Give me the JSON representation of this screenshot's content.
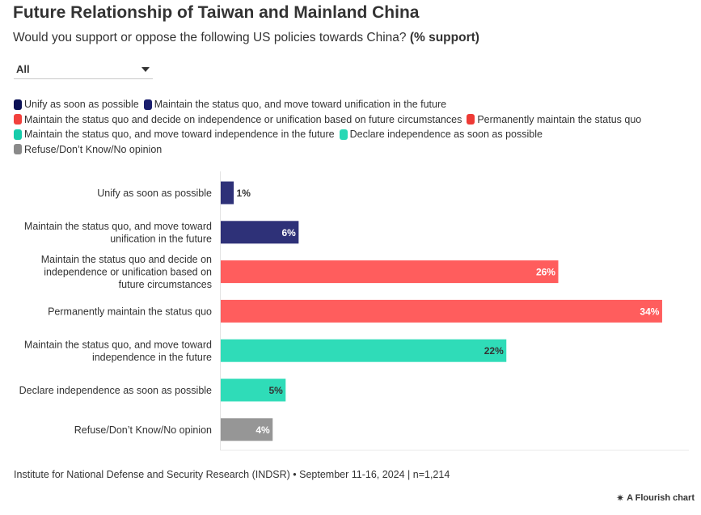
{
  "header": {
    "title": "Future Relationship of Taiwan and Mainland China",
    "subtitle": "Would you support or oppose the following US policies towards China?",
    "subtitle_bold": "(% support)"
  },
  "filter": {
    "selected": "All",
    "icon": "chevron-down-icon"
  },
  "legend": [
    {
      "label": "Unify as soon as possible",
      "color": "#0b1156"
    },
    {
      "label": "Maintain the status quo, and move toward unification in the future",
      "color": "#1b1f6e"
    },
    {
      "label": "Maintain the status quo and decide on independence or unification based on future circumstances",
      "color": "#f2413d"
    },
    {
      "label": "Permanently maintain the status quo",
      "color": "#ee3a35"
    },
    {
      "label": "Maintain the status quo, and move toward independence in the future",
      "color": "#16ccab"
    },
    {
      "label": "Declare independence as soon as possible",
      "color": "#27d8b5"
    },
    {
      "label": "Refuse/Don’t Know/No opinion",
      "color": "#8a8a8a"
    }
  ],
  "chart_data": {
    "type": "bar",
    "orientation": "horizontal",
    "title": "Future Relationship of Taiwan and Mainland China",
    "xlim": [
      0,
      35
    ],
    "grid": false,
    "value_suffix": "%",
    "categories": [
      "Unify as soon as possible",
      "Maintain the status quo, and move toward unification in the future",
      "Maintain the status quo and decide on independence or unification based on future circumstances",
      "Permanently maintain the status quo",
      "Maintain the status quo, and move toward independence in the future",
      "Declare independence as soon as possible",
      "Refuse/Don’t Know/No opinion"
    ],
    "category_lines": [
      [
        "Unify as soon as possible"
      ],
      [
        "Maintain the status quo, and move toward",
        "unification in the future"
      ],
      [
        "Maintain the status quo and decide on",
        "independence or unification based on",
        "future circumstances"
      ],
      [
        "Permanently maintain the status quo"
      ],
      [
        "Maintain the status quo, and move toward",
        "independence in the future"
      ],
      [
        "Declare independence as soon as possible"
      ],
      [
        "Refuse/Don’t Know/No opinion"
      ]
    ],
    "values": [
      1,
      6,
      26,
      34,
      22,
      5,
      4
    ],
    "labels": [
      "1%",
      "6%",
      "26%",
      "34%",
      "22%",
      "5%",
      "4%"
    ],
    "colors": [
      "#2e3178",
      "#2e3178",
      "#ff5d5d",
      "#ff5d5d",
      "#2fdcb8",
      "#2fdcb8",
      "#969696"
    ],
    "label_colors": [
      "#333333",
      "#ffffff",
      "#ffffff",
      "#ffffff",
      "#333333",
      "#333333",
      "#ffffff"
    ]
  },
  "footer": {
    "source": "Institute for National Defense and Security Research (INDSR) • September 11-16, 2024 | n=1,214",
    "credit": "A Flourish chart"
  }
}
